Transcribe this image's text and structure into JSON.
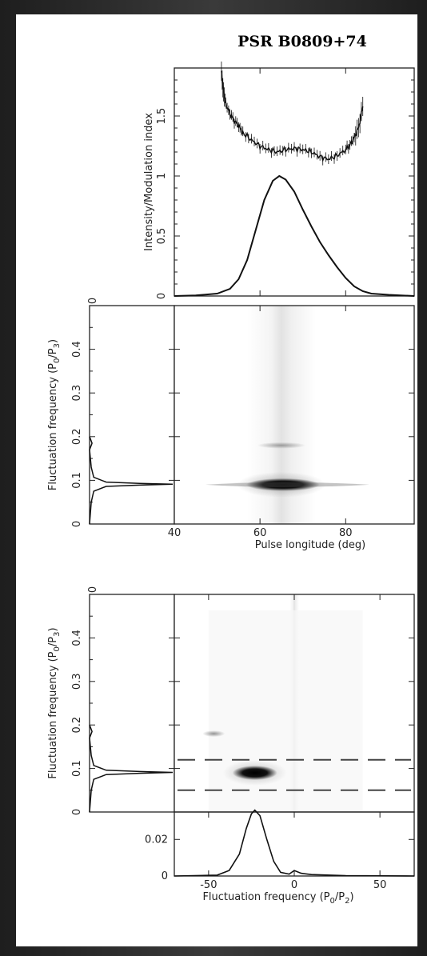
{
  "figure": {
    "title": "PSR B0809+74"
  },
  "chart_data": [
    {
      "id": "profile",
      "type": "line",
      "ylabel": "Intensity/Modulation index",
      "xlim": [
        40,
        96
      ],
      "ylim": [
        0,
        1.9
      ],
      "yticks": [
        "0",
        "0.5",
        "1",
        "1.5"
      ],
      "series": [
        {
          "role": "pulse-profile",
          "x": [
            40,
            45,
            50,
            53,
            55,
            57,
            59,
            61,
            63,
            64.5,
            66,
            68,
            70,
            72,
            74,
            76,
            78,
            80,
            82,
            84,
            86,
            90,
            96
          ],
          "y": [
            0.0,
            0.005,
            0.02,
            0.06,
            0.14,
            0.3,
            0.55,
            0.8,
            0.96,
            1.0,
            0.97,
            0.87,
            0.72,
            0.58,
            0.45,
            0.34,
            0.24,
            0.15,
            0.08,
            0.04,
            0.02,
            0.01,
            0.0
          ]
        },
        {
          "role": "modulation-index",
          "x": [
            51,
            51.5,
            52,
            53,
            54,
            55,
            56,
            58,
            60,
            62,
            64,
            66,
            68,
            70,
            72,
            74,
            76,
            78,
            80,
            81,
            82,
            83,
            84
          ],
          "y": [
            1.85,
            1.7,
            1.6,
            1.52,
            1.46,
            1.42,
            1.36,
            1.3,
            1.25,
            1.22,
            1.2,
            1.22,
            1.23,
            1.22,
            1.2,
            1.16,
            1.14,
            1.17,
            1.22,
            1.26,
            1.32,
            1.4,
            1.58
          ]
        }
      ]
    },
    {
      "id": "lrfs-side",
      "type": "line",
      "ylabel": "Fluctuation frequency (P0/P3)",
      "top_label": "0",
      "x": [
        0,
        0.02,
        0.05,
        0.2,
        0.6,
        1.0,
        0.6,
        0.2,
        0.05,
        0.02,
        0.0,
        0.03,
        0.0
      ],
      "y": [
        0.0,
        0.05,
        0.075,
        0.086,
        0.089,
        0.091,
        0.093,
        0.096,
        0.107,
        0.13,
        0.17,
        0.185,
        0.2
      ]
    },
    {
      "id": "lrfs",
      "type": "heatmap",
      "xlabel": "Pulse longitude (deg)",
      "ylabel": "Fluctuation frequency (P0/P3)",
      "xlim": [
        40,
        96
      ],
      "ylim": [
        0,
        0.5
      ],
      "xticks": [
        "40",
        "60",
        "80"
      ],
      "yticks": [
        "0",
        "0.1",
        "0.2",
        "0.3",
        "0.4"
      ],
      "features": [
        {
          "x": 65,
          "y": 0.09,
          "intensity": 1.0
        },
        {
          "x": 65,
          "y": 0.18,
          "intensity": 0.35
        }
      ]
    },
    {
      "id": "s2dfs-side",
      "type": "line",
      "ylabel": "Fluctuation frequency (P0/P3)",
      "top_label": "0",
      "x": [
        0,
        0.02,
        0.05,
        0.2,
        0.6,
        1.0,
        0.6,
        0.2,
        0.05,
        0.02,
        0.0,
        0.03,
        0.0
      ],
      "y": [
        0.0,
        0.05,
        0.075,
        0.086,
        0.089,
        0.091,
        0.093,
        0.096,
        0.107,
        0.13,
        0.17,
        0.185,
        0.2
      ]
    },
    {
      "id": "s2dfs",
      "type": "heatmap",
      "ylabel": "Fluctuation frequency (P0/P3)",
      "xlim": [
        -70,
        70
      ],
      "ylim": [
        0,
        0.5
      ],
      "yticks": [
        "0",
        "0.1",
        "0.2",
        "0.3",
        "0.4"
      ],
      "features": [
        {
          "x": -23,
          "y": 0.09,
          "intensity": 1.0
        },
        {
          "x": -47,
          "y": 0.18,
          "intensity": 0.4
        }
      ],
      "dashed_lines_y": [
        0.12,
        0.05
      ]
    },
    {
      "id": "p2-profile",
      "type": "line",
      "xlabel": "Fluctuation frequency (P0/P2)",
      "xlim": [
        -70,
        70
      ],
      "ylim": [
        0,
        0.035
      ],
      "xticks": [
        "-50",
        "0",
        "50"
      ],
      "yticks": [
        "0",
        "0.02"
      ],
      "x": [
        -70,
        -45,
        -38,
        -32,
        -28,
        -25,
        -23,
        -20,
        -16,
        -12,
        -8,
        -3,
        0,
        4,
        10,
        30,
        70
      ],
      "y": [
        0,
        0.0005,
        0.003,
        0.012,
        0.026,
        0.034,
        0.036,
        0.033,
        0.02,
        0.008,
        0.002,
        0.001,
        0.003,
        0.0015,
        0.0008,
        0.0002,
        0
      ]
    }
  ]
}
